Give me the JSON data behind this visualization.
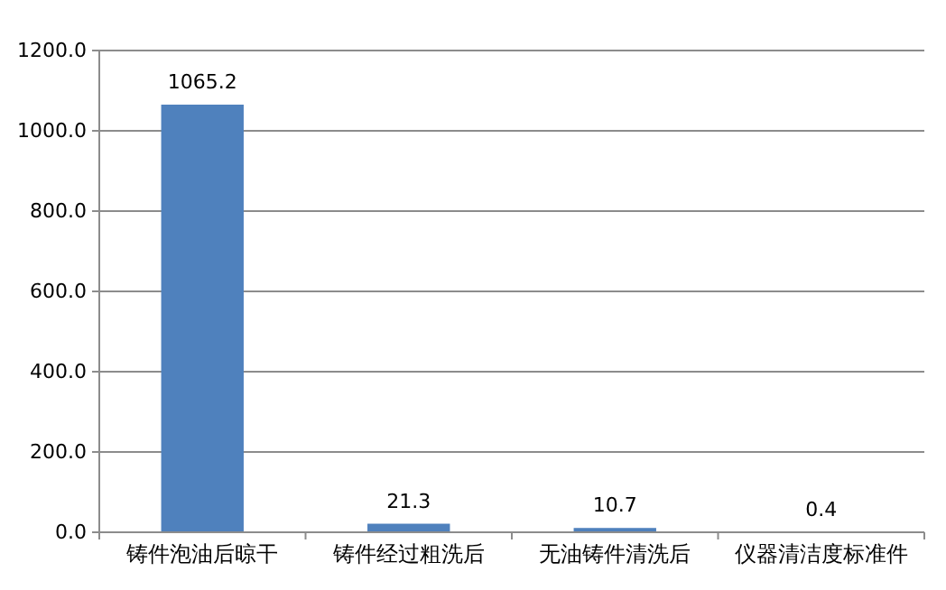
{
  "chart_data": {
    "type": "bar",
    "categories": [
      "铸件泡油后晾干",
      "铸件经过粗洗后",
      "无油铸件清洗后",
      "仪器清洁度标准件"
    ],
    "values": [
      1065.2,
      21.3,
      10.7,
      0.4
    ],
    "color": "#4f81bd",
    "data_labels": true,
    "grid": "y",
    "ylim": [
      0,
      1200
    ],
    "yticks": [
      {
        "value": 0,
        "label": "0.0"
      },
      {
        "value": 200,
        "label": "200.0"
      },
      {
        "value": 400,
        "label": "400.0"
      },
      {
        "value": 600,
        "label": "600.0"
      },
      {
        "value": 800,
        "label": "800.0"
      },
      {
        "value": 1000,
        "label": "1000.0"
      },
      {
        "value": 1200,
        "label": "1200.0"
      }
    ]
  }
}
